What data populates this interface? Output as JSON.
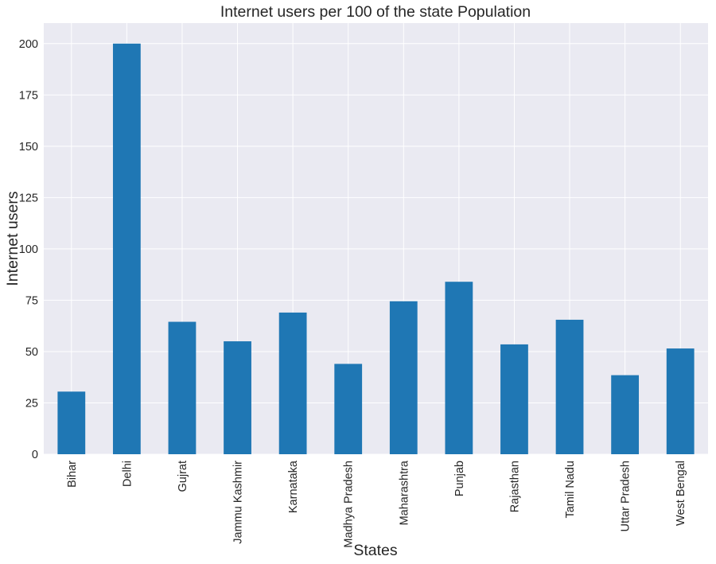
{
  "chart_data": {
    "type": "bar",
    "title": "Internet users per 100 of the state Population",
    "xlabel": "States",
    "ylabel": "Internet users",
    "categories": [
      "Bihar",
      "Delhi",
      "Gujrat",
      "Jammu Kashmir",
      "Karnataka",
      "Madhya Pradesh",
      "Maharashtra",
      "Punjab",
      "Rajasthan",
      "Tamil Nadu",
      "Uttar Pradesh",
      "West Bengal"
    ],
    "values": [
      30.5,
      200,
      64.5,
      55,
      69,
      44,
      74.5,
      84,
      53.5,
      65.5,
      38.5,
      51.5
    ],
    "ylim": [
      0,
      210
    ],
    "yticks": [
      "0",
      "25",
      "50",
      "75",
      "100",
      "125",
      "150",
      "175",
      "200"
    ],
    "grid": true,
    "bar_color": "#1f77b4",
    "background_color": "#eaeaf2",
    "grid_color": "#ffffff"
  }
}
